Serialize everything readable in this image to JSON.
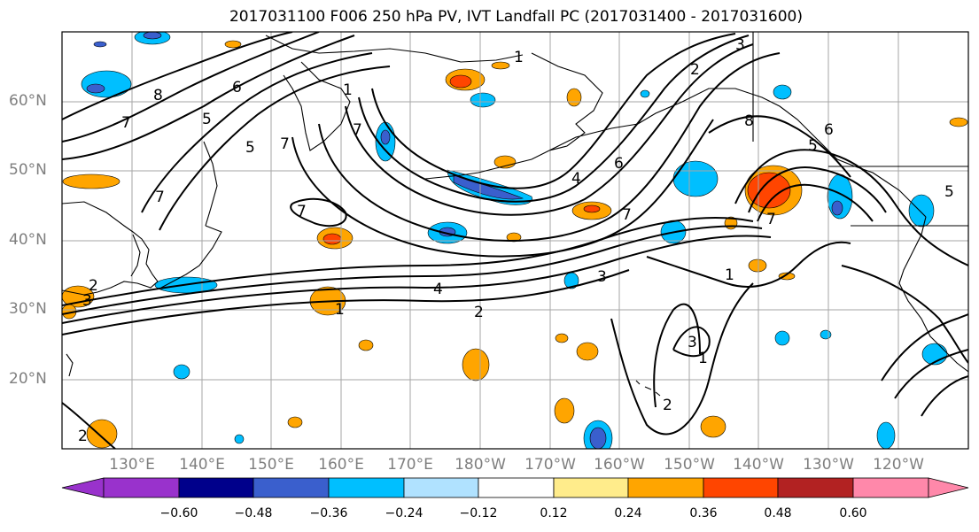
{
  "title": "2017031100 F006 250 hPa PV, IVT Landfall PC (2017031400 - 2017031600)",
  "latitude_labels": [
    "60°N",
    "50°N",
    "40°N",
    "30°N",
    "20°N"
  ],
  "longitude_labels": [
    "130°E",
    "140°E",
    "150°E",
    "160°E",
    "170°E",
    "180°W",
    "170°W",
    "160°W",
    "150°W",
    "140°W",
    "130°W",
    "120°W"
  ],
  "contour_labels": [
    "8",
    "6",
    "7",
    "5",
    "5",
    "7",
    "7",
    "7",
    "1",
    "7",
    "1",
    "6",
    "2",
    "3",
    "8",
    "7",
    "6",
    "5",
    "4",
    "7",
    "1",
    "4",
    "2",
    "1",
    "3",
    "3",
    "1",
    "2",
    "2",
    "3",
    "2",
    "5"
  ],
  "colorbar": {
    "ticks": [
      "−0.60",
      "−0.48",
      "−0.36",
      "−0.24",
      "−0.12",
      "0.12",
      "0.24",
      "0.36",
      "0.48",
      "0.60"
    ],
    "colors": [
      "#9932cc",
      "#00008b",
      "#3a5fcd",
      "#00bfff",
      "#b0e2ff",
      "#ffffff",
      "#ffec8b",
      "#ffa500",
      "#ff4500",
      "#b22222",
      "#ff88aa"
    ]
  },
  "colors": {
    "contour": "#000000",
    "coastline": "#000000",
    "gridline": "#a6a6a6",
    "axis_label": "#7f7f7f"
  }
}
